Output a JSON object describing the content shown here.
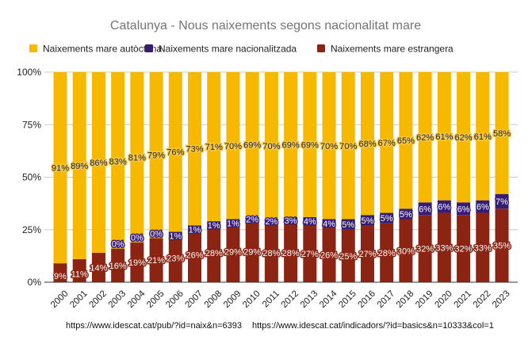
{
  "chart_data": {
    "type": "bar",
    "stacked": true,
    "percent_stacked": true,
    "title": "Catalunya - Nous naixements segons nacionalitat mare",
    "xlabel": "",
    "ylabel": "",
    "ylim": [
      0,
      100
    ],
    "yticks": [
      "0%",
      "25%",
      "50%",
      "75%",
      "100%"
    ],
    "ytick_values": [
      0,
      25,
      50,
      75,
      100
    ],
    "grid": true,
    "legend_position": "top",
    "categories": [
      "2000",
      "2001",
      "2002",
      "2003",
      "2004",
      "2005",
      "2006",
      "2007",
      "2008",
      "2009",
      "2010",
      "2011",
      "2012",
      "2013",
      "2014",
      "2015",
      "2016",
      "2017",
      "2018",
      "2019",
      "2020",
      "2021",
      "2022",
      "2023"
    ],
    "series": [
      {
        "name": "Naixements mare estrangera",
        "color": "#8b2413",
        "label_color": "#ffffff",
        "values": [
          9,
          11,
          14,
          16,
          19,
          21,
          23,
          26,
          28,
          29,
          29,
          28,
          28,
          27,
          26,
          25,
          27,
          28,
          30,
          32,
          33,
          32,
          33,
          35
        ]
      },
      {
        "name": "Naixements mare nacionalitzada",
        "color": "#351c75",
        "label_color": "#ffffff",
        "values": [
          0,
          0,
          0,
          0,
          0,
          0,
          1,
          1,
          1,
          1,
          2,
          2,
          3,
          4,
          4,
          5,
          5,
          5,
          5,
          6,
          6,
          6,
          6,
          7
        ],
        "labels_shown": [
          false,
          false,
          false,
          true,
          true,
          true,
          true,
          true,
          true,
          true,
          true,
          true,
          true,
          true,
          true,
          true,
          true,
          true,
          true,
          true,
          true,
          true,
          true,
          true
        ]
      },
      {
        "name": "Naixements mare autòctona",
        "color": "#f6b900",
        "label_color": "#222222",
        "values": [
          91,
          89,
          86,
          83,
          81,
          79,
          76,
          73,
          71,
          70,
          69,
          70,
          69,
          69,
          70,
          70,
          68,
          67,
          65,
          62,
          61,
          62,
          61,
          58
        ]
      }
    ],
    "legend_order": [
      "Naixements mare autòctona",
      "Naixements mare nacionalitzada",
      "Naixements mare estrangera"
    ],
    "label_suffix": "%"
  },
  "sources": {
    "source_1": "https://www.idescat.cat/pub/?id=naix&n=6393",
    "source_2": "https://www.idescat.cat/indicadors/?id=basics&n=10333&col=1"
  }
}
